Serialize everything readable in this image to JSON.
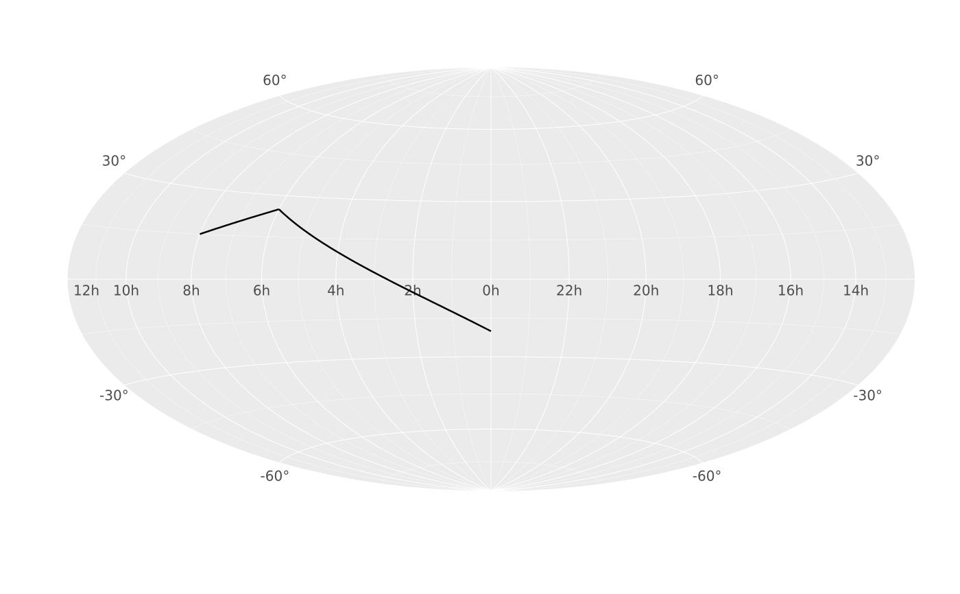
{
  "chart_data": {
    "type": "line",
    "projection": "hammer",
    "x": [
      8,
      6,
      4,
      0
    ],
    "values": [
      15,
      25,
      10,
      -20
    ],
    "color": "#000000",
    "xlim": [
      0,
      24
    ],
    "ylim": [
      -90,
      90
    ],
    "xticks": [
      {
        "value": 12,
        "label": "12h"
      },
      {
        "value": 10,
        "label": "10h"
      },
      {
        "value": 8,
        "label": "8h"
      },
      {
        "value": 6,
        "label": "6h"
      },
      {
        "value": 4,
        "label": "4h"
      },
      {
        "value": 2,
        "label": "2h"
      },
      {
        "value": 0,
        "label": "0h"
      },
      {
        "value": 22,
        "label": "22h"
      },
      {
        "value": 20,
        "label": "20h"
      },
      {
        "value": 18,
        "label": "18h"
      },
      {
        "value": 16,
        "label": "16h"
      },
      {
        "value": 14,
        "label": "14h"
      }
    ],
    "yticks": [
      {
        "value": -60,
        "label": "-60°"
      },
      {
        "value": -30,
        "label": "-30°"
      },
      {
        "value": 30,
        "label": "30°"
      },
      {
        "value": 60,
        "label": "60°"
      }
    ],
    "grid": true
  }
}
